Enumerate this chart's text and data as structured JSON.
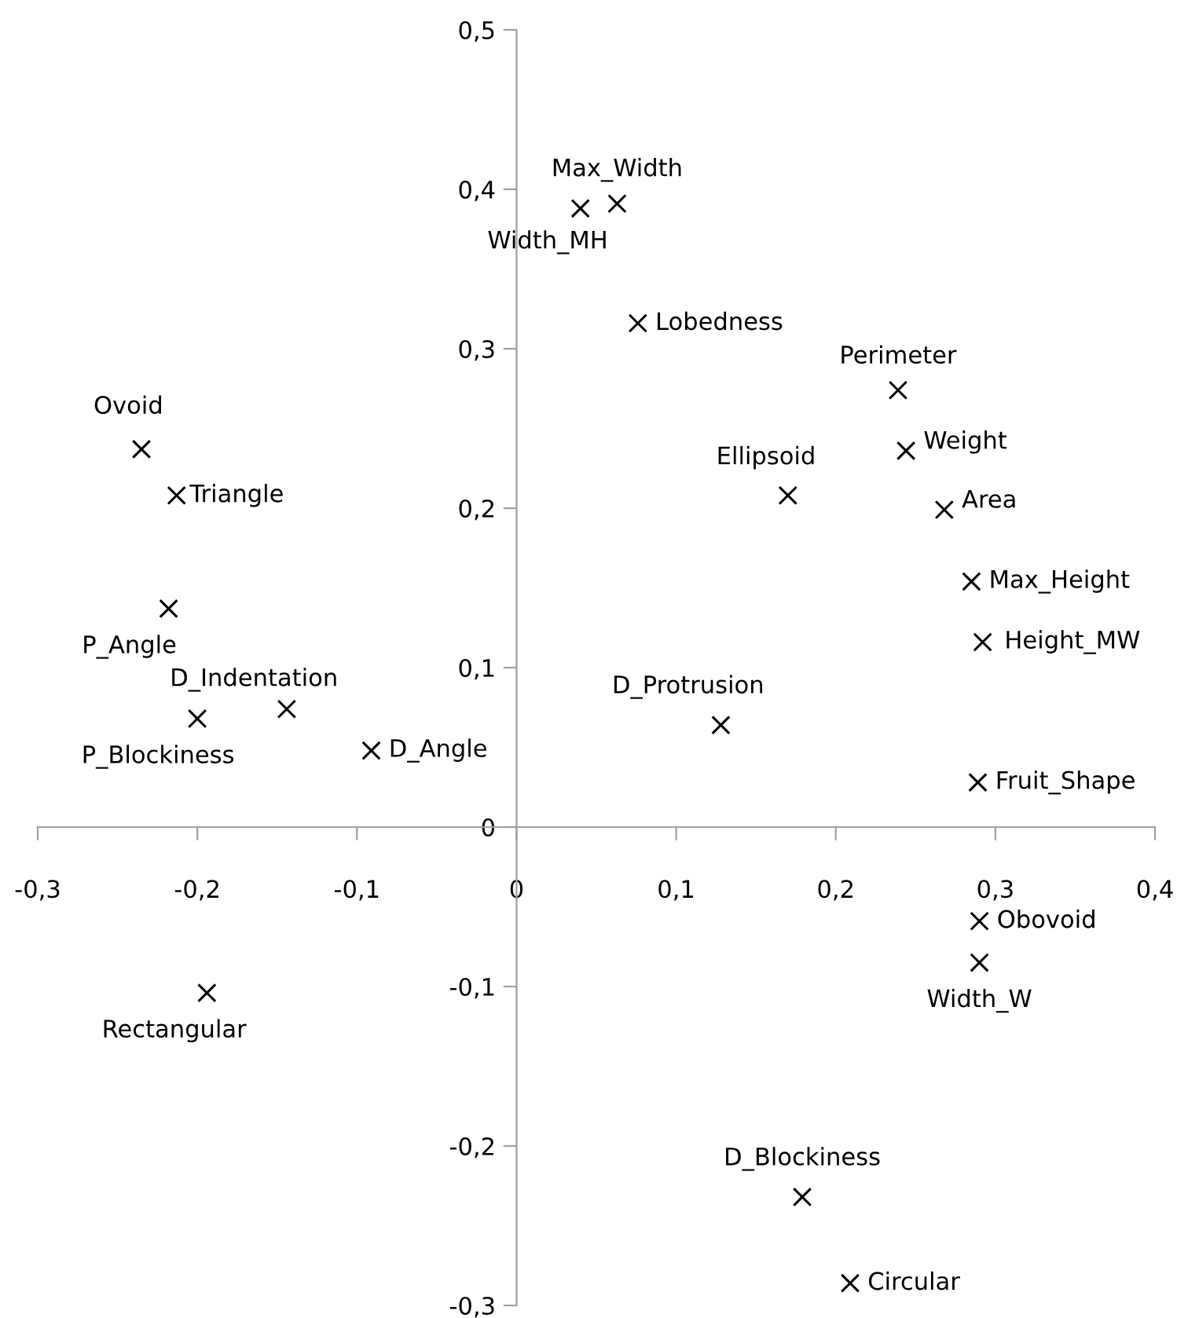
{
  "chart_data": {
    "type": "scatter",
    "marker": "cross",
    "grid": false,
    "legend": false,
    "x": [
      -0.235,
      -0.213,
      -0.218,
      -0.2,
      -0.144,
      -0.091,
      -0.194,
      0.04,
      0.063,
      0.076,
      0.239,
      0.244,
      0.17,
      0.268,
      0.285,
      0.292,
      0.128,
      0.289,
      0.29,
      0.29,
      0.179,
      0.209
    ],
    "series": [
      {
        "color": "#000000",
        "values": [
          0.237,
          0.208,
          0.137,
          0.068,
          0.074,
          0.048,
          -0.104,
          0.388,
          0.391,
          0.316,
          0.274,
          0.236,
          0.208,
          0.199,
          0.154,
          0.116,
          0.064,
          0.028,
          -0.059,
          -0.085,
          -0.232,
          -0.286
        ]
      }
    ],
    "xlim": [
      -0.3,
      0.4
    ],
    "ylim": [
      -0.3,
      0.5
    ],
    "xticks": [
      {
        "value": -0.3,
        "label": "-0,3"
      },
      {
        "value": -0.2,
        "label": "-0,2"
      },
      {
        "value": -0.1,
        "label": "-0,1"
      },
      0,
      {
        "value": 0.1,
        "label": "0,1"
      },
      {
        "value": 0.2,
        "label": "0,2"
      },
      {
        "value": 0.3,
        "label": "0,3"
      },
      {
        "value": 0.4,
        "label": "0,4"
      }
    ],
    "yticks": [
      {
        "value": -0.3,
        "label": "-0,3"
      },
      {
        "value": -0.2,
        "label": "-0,2"
      },
      {
        "value": -0.1,
        "label": "-0,1"
      },
      0,
      {
        "value": 0.1,
        "label": "0,1"
      },
      {
        "value": 0.2,
        "label": "0,2"
      },
      {
        "value": 0.3,
        "label": "0,3"
      },
      {
        "value": 0.4,
        "label": "0,4"
      },
      {
        "value": 0.5,
        "label": "0,5"
      }
    ],
    "annotations": [
      {
        "text": "Ovoid",
        "x": -0.235,
        "y": 0.237
      },
      {
        "text": "Triangle",
        "x": -0.213,
        "y": 0.208
      },
      {
        "text": "P_Angle",
        "x": -0.218,
        "y": 0.137
      },
      {
        "text": "P_Blockiness",
        "x": -0.2,
        "y": 0.068
      },
      {
        "text": "D_Indentation",
        "x": -0.144,
        "y": 0.074
      },
      {
        "text": "D_Angle",
        "x": -0.091,
        "y": 0.048
      },
      {
        "text": "Rectangular",
        "x": -0.194,
        "y": -0.104
      },
      {
        "text": "Width_MH",
        "x": 0.04,
        "y": 0.388
      },
      {
        "text": "Max_Width",
        "x": 0.063,
        "y": 0.391
      },
      {
        "text": "Lobedness",
        "x": 0.076,
        "y": 0.316
      },
      {
        "text": "Perimeter",
        "x": 0.239,
        "y": 0.274
      },
      {
        "text": "Weight",
        "x": 0.244,
        "y": 0.236
      },
      {
        "text": "Ellipsoid",
        "x": 0.17,
        "y": 0.208
      },
      {
        "text": "Area",
        "x": 0.268,
        "y": 0.199
      },
      {
        "text": "Max_Height",
        "x": 0.285,
        "y": 0.154
      },
      {
        "text": "Height_MW",
        "x": 0.292,
        "y": 0.116
      },
      {
        "text": "D_Protrusion",
        "x": 0.128,
        "y": 0.064
      },
      {
        "text": "Fruit_Shape",
        "x": 0.289,
        "y": 0.028
      },
      {
        "text": "Obovoid",
        "x": 0.29,
        "y": -0.059
      },
      {
        "text": "Width_W",
        "x": 0.29,
        "y": -0.085
      },
      {
        "text": "D_Blockiness",
        "x": 0.179,
        "y": -0.232
      },
      {
        "text": "Circular",
        "x": 0.209,
        "y": -0.286
      }
    ]
  }
}
